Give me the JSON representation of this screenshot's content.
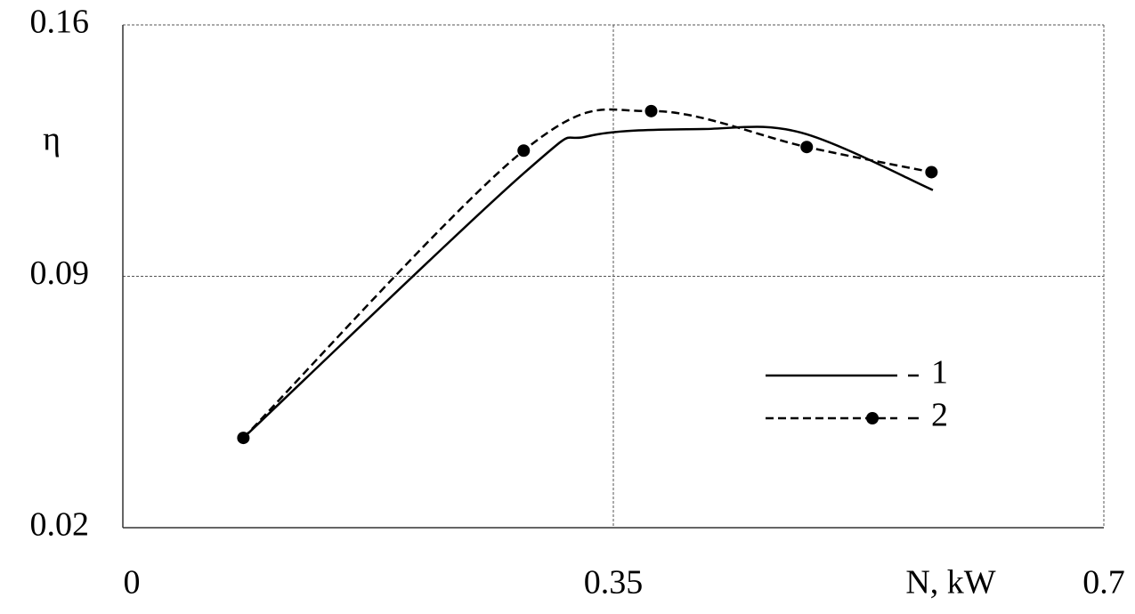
{
  "chart_data": {
    "type": "line",
    "x_label": "N, kW",
    "y_label": "η",
    "xlim": [
      0,
      0.7
    ],
    "xticks": [
      0,
      0.35,
      0.7
    ],
    "ylim": [
      0.02,
      0.16
    ],
    "yticks": [
      0.02,
      0.09,
      0.16
    ],
    "grid": true,
    "legend": "lower right",
    "series": [
      {
        "name": "1",
        "color": "#000000",
        "dash": false,
        "markers": false,
        "x": [
          0.086,
          0.287,
          0.332,
          0.414,
          0.484,
          0.578
        ],
        "values": [
          0.045,
          0.119,
          0.129,
          0.131,
          0.13,
          0.114
        ]
      },
      {
        "name": "2",
        "color": "#000000",
        "dash": true,
        "markers": true,
        "x": [
          0.086,
          0.286,
          0.377,
          0.488,
          0.577
        ],
        "values": [
          0.045,
          0.125,
          0.136,
          0.126,
          0.119
        ]
      }
    ]
  }
}
